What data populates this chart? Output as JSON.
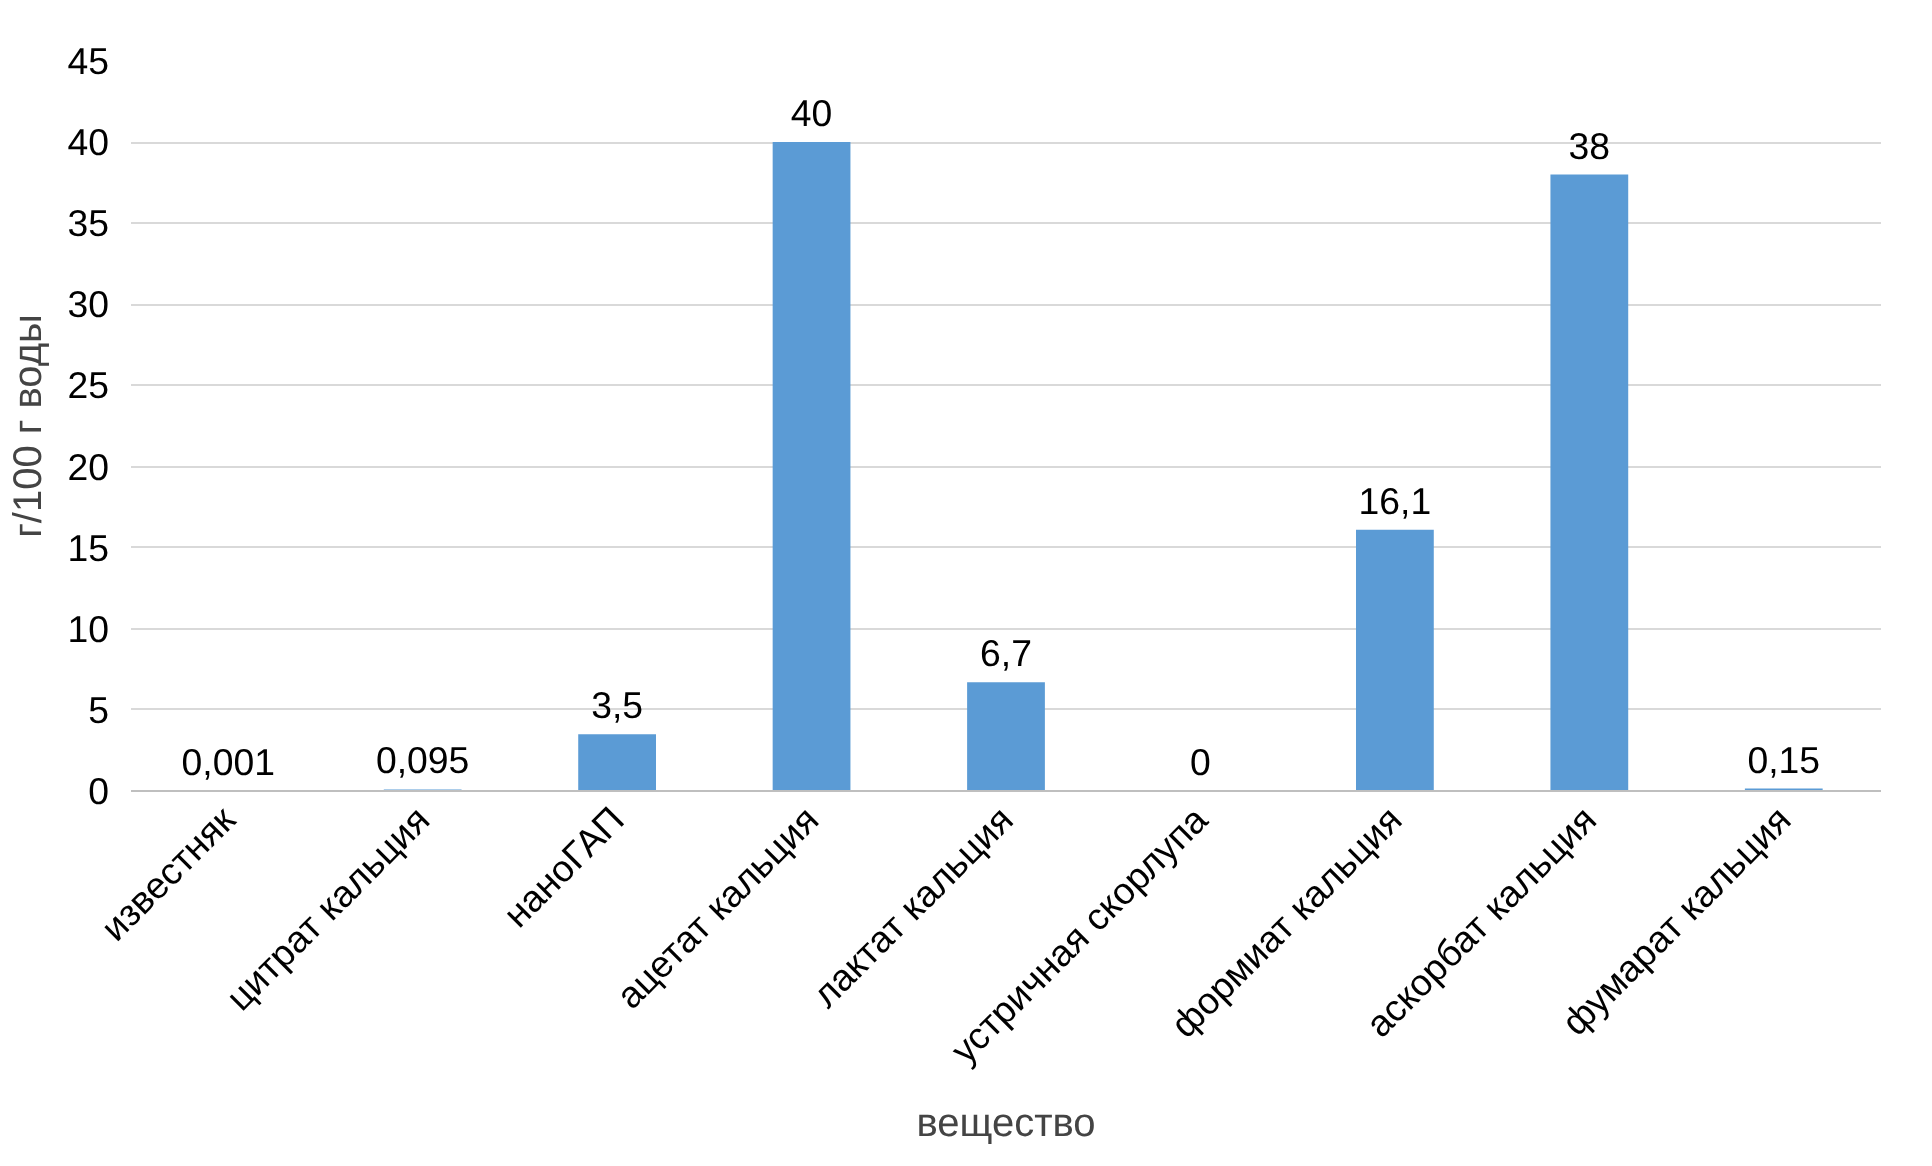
{
  "chart_data": {
    "type": "bar",
    "xlabel": "вещество",
    "ylabel": "г/100 г воды",
    "categories": [
      "известняк",
      "цитрат кальция",
      "наноГАП",
      "ацетат кальция",
      "лактат кальция",
      "устричная скорлупа",
      "формиат кальция",
      "аскорбат кальция",
      "фумарат кальция"
    ],
    "values": [
      0.001,
      0.095,
      3.5,
      40,
      6.7,
      0,
      16.1,
      38,
      0.15
    ],
    "value_labels": [
      "0,001",
      "0,095",
      "3,5",
      "40",
      "6,7",
      "0",
      "16,1",
      "38",
      "0,15"
    ],
    "color": "#5b9bd5",
    "ylim": [
      0,
      45
    ],
    "yticks": [
      0,
      5,
      10,
      15,
      20,
      25,
      30,
      35,
      40,
      45
    ],
    "grid": "y"
  }
}
